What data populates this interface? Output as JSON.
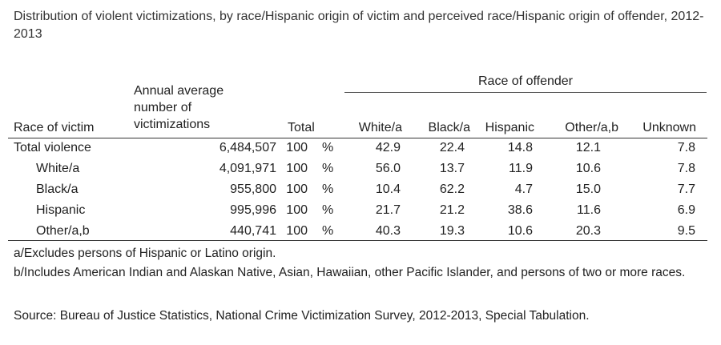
{
  "title": "Distribution of violent victimizations, by race/Hispanic origin of victim and perceived race/Hispanic origin of offender, 2012-2013",
  "headers": {
    "race_of_victim": "Race of victim",
    "annual_average": "Annual average number of victimizations",
    "total": "Total",
    "race_of_offender": "Race of offender",
    "offender_cols": [
      "White/a",
      "Black/a",
      "Hispanic",
      "Other/a,b",
      "Unknown"
    ]
  },
  "rows": [
    {
      "label": "Total violence",
      "count": "6,484,507",
      "total": "100",
      "pct": "%",
      "values": [
        "42.9",
        "22.4",
        "14.8",
        "12.1",
        "7.8"
      ]
    },
    {
      "label": "White/a",
      "count": "4,091,971",
      "total": "100",
      "pct": "%",
      "values": [
        "56.0",
        "13.7",
        "11.9",
        "10.6",
        "7.8"
      ]
    },
    {
      "label": "Black/a",
      "count": "955,800",
      "total": "100",
      "pct": "%",
      "values": [
        "10.4",
        "62.2",
        "4.7",
        "15.0",
        "7.7"
      ]
    },
    {
      "label": "Hispanic",
      "count": "995,996",
      "total": "100",
      "pct": "%",
      "values": [
        "21.7",
        "21.2",
        "38.6",
        "11.6",
        "6.9"
      ]
    },
    {
      "label": "Other/a,b",
      "count": "440,741",
      "total": "100",
      "pct": "%",
      "values": [
        "40.3",
        "19.3",
        "10.6",
        "20.3",
        "9.5"
      ]
    }
  ],
  "notes": [
    "a/Excludes persons of Hispanic or Latino origin.",
    "b/Includes American Indian and Alaskan Native, Asian, Hawaiian, other Pacific Islander, and persons of two or more races.",
    "Source: Bureau of Justice Statistics, National Crime Victimization Survey, 2012-2013, Special Tabulation."
  ]
}
